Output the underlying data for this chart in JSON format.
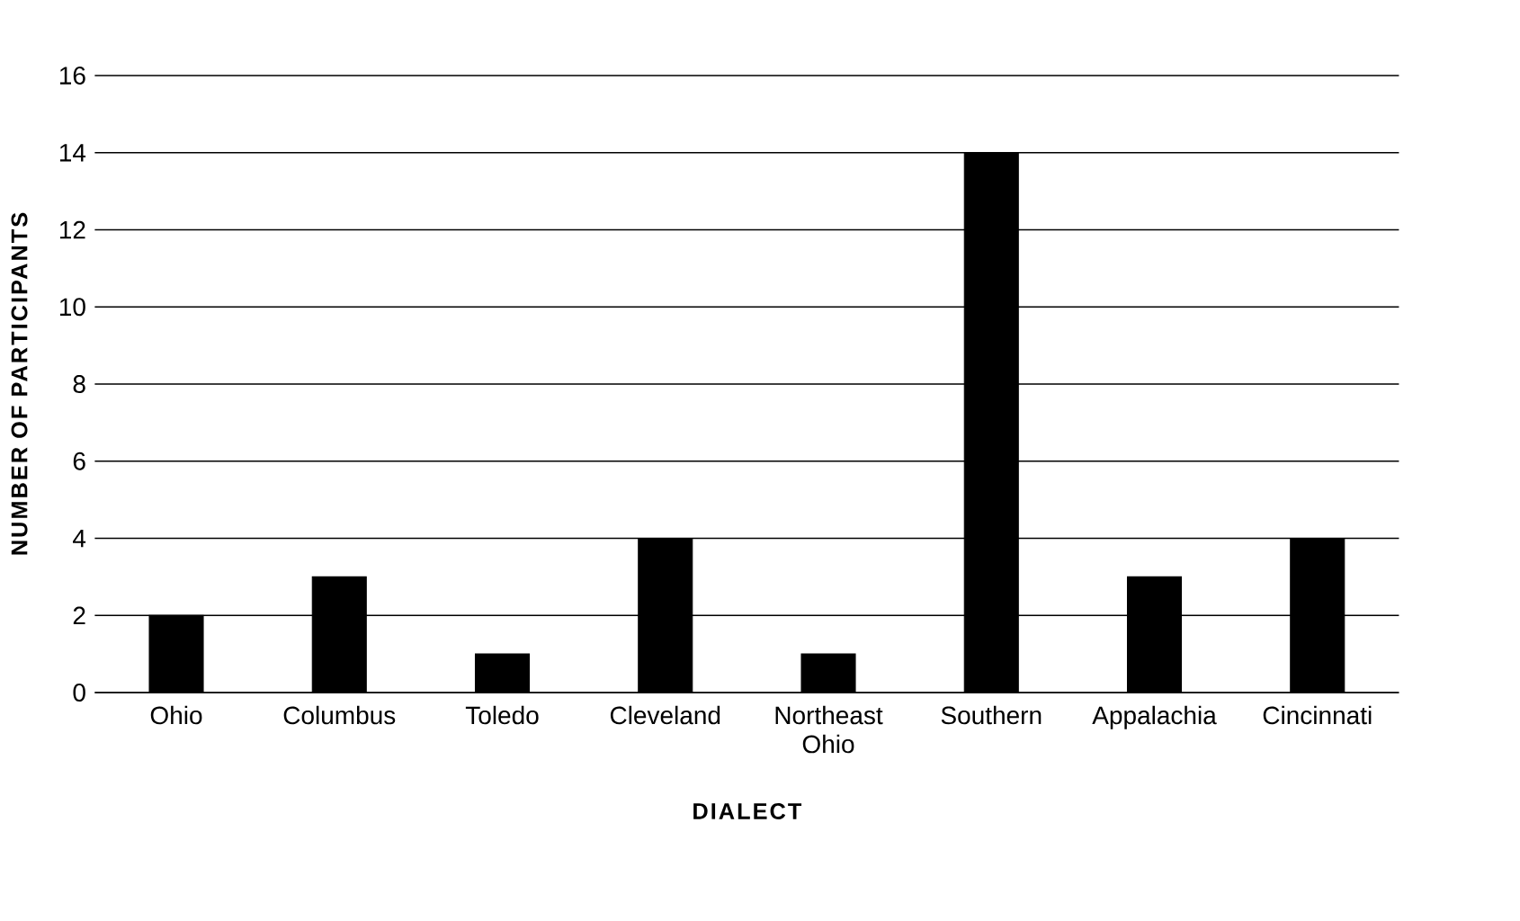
{
  "chart_data": {
    "type": "bar",
    "xlabel": "DIALECT",
    "ylabel": "NUMBER OF PARTICIPANTS",
    "categories": [
      "Ohio",
      "Columbus",
      "Toledo",
      "Cleveland",
      "Northeast Ohio",
      "Southern",
      "Appalachia",
      "Cincinnati"
    ],
    "values": [
      2,
      3,
      1,
      4,
      1,
      14,
      3,
      4
    ],
    "color": "#000000",
    "ylim": [
      0,
      16
    ],
    "yticks": [
      0,
      2,
      4,
      6,
      8,
      10,
      12,
      14,
      16
    ],
    "grid": "y"
  }
}
